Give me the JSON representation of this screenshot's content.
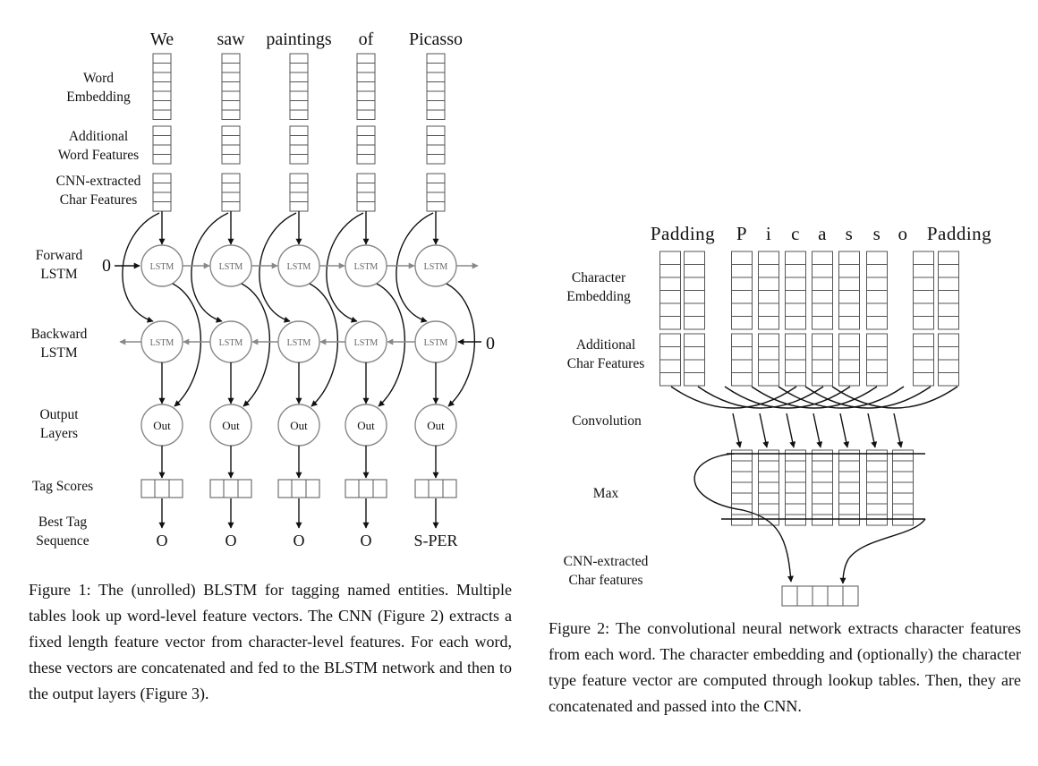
{
  "figure1": {
    "words": [
      "We",
      "saw",
      "paintings",
      "of",
      "Picasso"
    ],
    "row_labels": {
      "word_embedding": [
        "Word",
        "Embedding"
      ],
      "additional_word_features": [
        "Additional",
        "Word Features"
      ],
      "cnn_char_features": [
        "CNN-extracted",
        "Char Features"
      ],
      "forward_lstm": [
        "Forward",
        "LSTM"
      ],
      "backward_lstm": [
        "Backward",
        "LSTM"
      ],
      "output_layers": [
        "Output",
        "Layers"
      ],
      "tag_scores": [
        "Tag Scores"
      ],
      "best_tag_sequence": [
        "Best Tag",
        "Sequence"
      ]
    },
    "forward_init": "0",
    "backward_init": "0",
    "lstm_label": "LSTM",
    "out_label": "Out",
    "tags": [
      "O",
      "O",
      "O",
      "O",
      "S-PER"
    ],
    "caption": "Figure 1: The (unrolled) BLSTM for tagging named entities. Multiple tables look up word-level feature vectors. The CNN (Figure 2) extracts a fixed length feature vector from character-level features. For each word, these vectors are concatenated and fed to the BLSTM network and then to the output layers (Figure 3)."
  },
  "figure2": {
    "columns": [
      "Padding",
      "P",
      "i",
      "c",
      "a",
      "s",
      "s",
      "o",
      "Padding"
    ],
    "row_labels": {
      "character_embedding": [
        "Character",
        "Embedding"
      ],
      "additional_char_features": [
        "Additional",
        "Char Features"
      ],
      "convolution": [
        "Convolution"
      ],
      "max": [
        "Max"
      ],
      "cnn_char_features": [
        "CNN-extracted",
        "Char features"
      ]
    },
    "caption": "Figure 2: The convolutional neural network extracts character features from each word. The character embedding and (optionally) the character type feature vector are computed through lookup tables. Then, they are concatenated and passed into the CNN."
  }
}
